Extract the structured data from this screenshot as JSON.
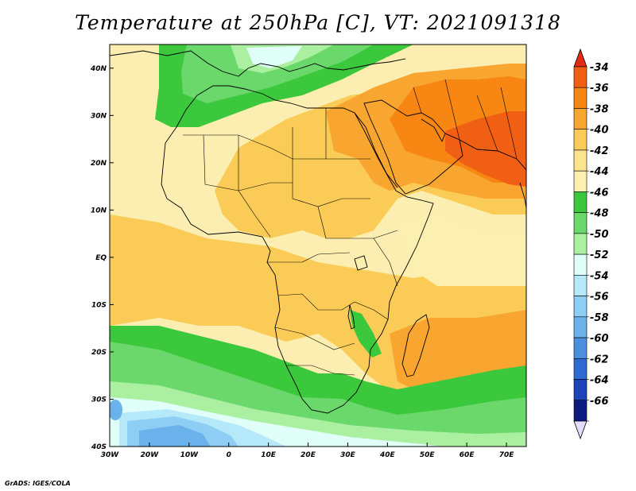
{
  "title": "Temperature at 250hPa [C], VT: 2021091318",
  "credit": "GrADS: IGES/COLA",
  "map": {
    "lon_range": [
      -30,
      75
    ],
    "lat_range": [
      -40,
      45
    ],
    "lon_ticks": [
      {
        "v": -30,
        "t": "30W"
      },
      {
        "v": -20,
        "t": "20W"
      },
      {
        "v": -10,
        "t": "10W"
      },
      {
        "v": 0,
        "t": "0"
      },
      {
        "v": 10,
        "t": "10E"
      },
      {
        "v": 20,
        "t": "20E"
      },
      {
        "v": 30,
        "t": "30E"
      },
      {
        "v": 40,
        "t": "40E"
      },
      {
        "v": 50,
        "t": "50E"
      },
      {
        "v": 60,
        "t": "60E"
      },
      {
        "v": 70,
        "t": "70E"
      }
    ],
    "lat_ticks": [
      {
        "v": 40,
        "t": "40N"
      },
      {
        "v": 30,
        "t": "30N"
      },
      {
        "v": 20,
        "t": "20N"
      },
      {
        "v": 10,
        "t": "10N"
      },
      {
        "v": 0,
        "t": "EQ"
      },
      {
        "v": -10,
        "t": "10S"
      },
      {
        "v": -20,
        "t": "20S"
      },
      {
        "v": -30,
        "t": "30S"
      },
      {
        "v": -40,
        "t": "40S"
      }
    ],
    "background_fill": "#fbeeb0"
  },
  "colorbar": {
    "labels": [
      "-34",
      "-36",
      "-38",
      "-40",
      "-42",
      "-44",
      "-46",
      "-48",
      "-50",
      "-52",
      "-54",
      "-56",
      "-58",
      "-60",
      "-62",
      "-64",
      "-66"
    ],
    "colors": [
      "#f05f14",
      "#f78712",
      "#f9a631",
      "#fbcb57",
      "#fde38b",
      "#fbf0b0",
      "#3cc83c",
      "#6ad86a",
      "#aaf0a0",
      "#e0fff9",
      "#b5e8f8",
      "#8ecef4",
      "#6bb2ec",
      "#4a8ee0",
      "#2f6ad2",
      "#1d43b8",
      "#0d1a82"
    ],
    "top_cap_color": "#e02d14",
    "bottom_cap_color": "#e4dcff"
  }
}
